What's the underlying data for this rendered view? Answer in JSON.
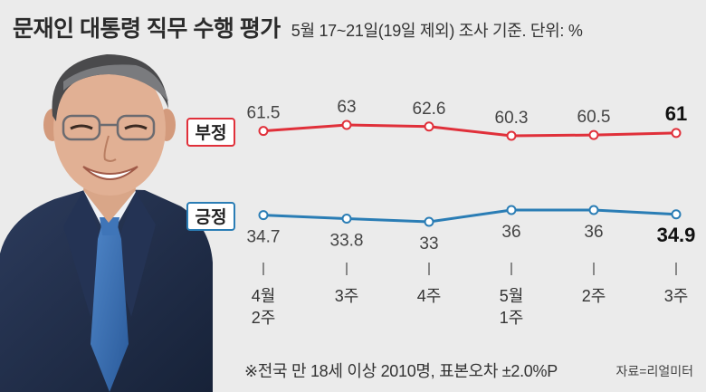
{
  "header": {
    "title": "문재인 대통령 직무 수행 평가",
    "subtitle": "5월 17~21일(19일 제외) 조사 기준. 단위: %"
  },
  "footer": {
    "note": "※전국 만 18세 이상 2010명, 표본오차 ±2.0%P",
    "source": "자료=리얼미터"
  },
  "colors": {
    "negative": "#e0303a",
    "positive": "#2a7db5"
  },
  "chart_data": {
    "type": "line",
    "categories": [
      "4월\n2주",
      "3주",
      "4주",
      "5월\n1주",
      "2주",
      "3주"
    ],
    "series": [
      {
        "name": "부정",
        "values": [
          61.5,
          63,
          62.6,
          60.3,
          60.5,
          61
        ],
        "value_labels": [
          "61.5",
          "63",
          "62.6",
          "60.3",
          "60.5",
          "61"
        ]
      },
      {
        "name": "긍정",
        "values": [
          34.7,
          33.8,
          33,
          36,
          36,
          34.9
        ],
        "value_labels": [
          "34.7",
          "33.8",
          "33",
          "36",
          "36",
          "34.9"
        ]
      }
    ],
    "title": "문재인 대통령 직무 수행 평가",
    "xlabel": "",
    "ylabel": "",
    "grid": false,
    "legend": "inline-left"
  }
}
